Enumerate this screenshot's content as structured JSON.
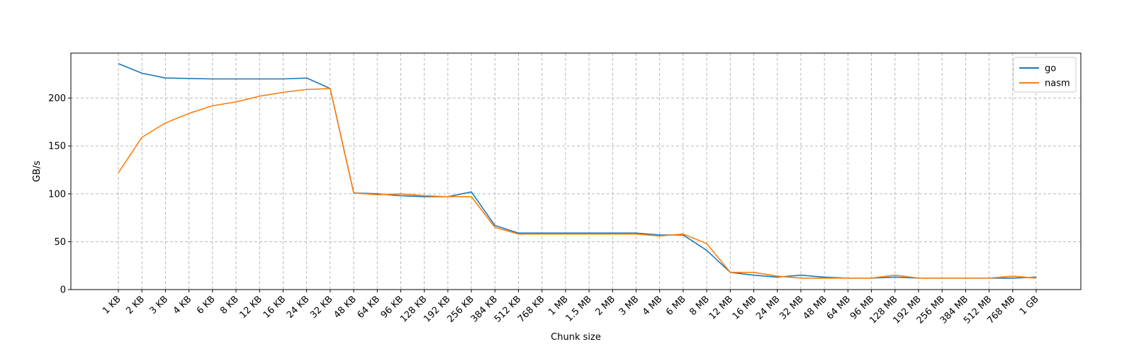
{
  "chart_data": {
    "type": "line",
    "title": "",
    "xlabel": "Chunk size",
    "ylabel": "GB/s",
    "ylim": [
      0,
      247
    ],
    "yticks": [
      0,
      50,
      100,
      150,
      200
    ],
    "grid": true,
    "legend_position": "top-right",
    "categories": [
      "1 KB",
      "2 KB",
      "3 KB",
      "4 KB",
      "6 KB",
      "8 KB",
      "12 KB",
      "16 KB",
      "24 KB",
      "32 KB",
      "48 KB",
      "64 KB",
      "96 KB",
      "128 KB",
      "192 KB",
      "256 KB",
      "384 KB",
      "512 KB",
      "768 KB",
      "1 MB",
      "1.5 MB",
      "2 MB",
      "3 MB",
      "4 MB",
      "6 MB",
      "8 MB",
      "12 MB",
      "16 MB",
      "24 MB",
      "32 MB",
      "48 MB",
      "64 MB",
      "96 MB",
      "128 MB",
      "192 MB",
      "256 MB",
      "384 MB",
      "512 MB",
      "768 MB",
      "1 GB"
    ],
    "series": [
      {
        "name": "go",
        "color": "#1f77b4",
        "values": [
          236,
          226,
          221,
          220.5,
          220,
          220,
          220,
          220,
          221,
          210,
          101,
          100,
          98,
          97,
          97,
          102,
          67,
          59,
          59,
          59,
          59,
          59,
          59,
          57,
          57,
          41,
          18,
          15,
          13,
          15,
          13,
          12,
          12,
          13,
          12,
          12,
          12,
          12,
          12,
          13
        ]
      },
      {
        "name": "nasm",
        "color": "#ff7f0e",
        "values": [
          122,
          159,
          174,
          184,
          192,
          196,
          202,
          206,
          209,
          210,
          101,
          99,
          100,
          98,
          97,
          97,
          65,
          58,
          58,
          58,
          58,
          58,
          58,
          56,
          58,
          48,
          18,
          18,
          14,
          12,
          12,
          12,
          12,
          15,
          12,
          12,
          12,
          12,
          14,
          12
        ]
      }
    ]
  }
}
